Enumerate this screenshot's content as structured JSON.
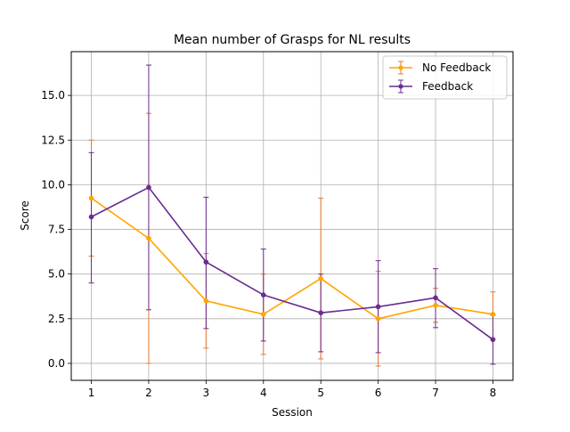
{
  "chart_data": {
    "type": "line",
    "title": "Mean number of Grasps for NL results",
    "xlabel": "Session",
    "ylabel": "Score",
    "x": [
      1,
      2,
      3,
      4,
      5,
      6,
      7,
      8
    ],
    "xlim": [
      0.65,
      8.35
    ],
    "ylim": [
      -0.95,
      17.45
    ],
    "xticks": [
      1,
      2,
      3,
      4,
      5,
      6,
      7,
      8
    ],
    "yticks": [
      0.0,
      2.5,
      5.0,
      7.5,
      10.0,
      12.5,
      15.0
    ],
    "ytick_labels": [
      "0.0",
      "2.5",
      "5.0",
      "7.5",
      "10.0",
      "12.5",
      "15.0"
    ],
    "grid": true,
    "legend_position": "top-right",
    "series": [
      {
        "name": "No Feedback",
        "color": "#FFA500",
        "error_color": "#E8792B",
        "values": [
          9.25,
          7.0,
          3.5,
          2.75,
          4.75,
          2.5,
          3.25,
          2.75
        ],
        "yerr_low": [
          6.0,
          0.0,
          0.85,
          0.5,
          0.25,
          -0.15,
          2.3,
          1.4
        ],
        "yerr_high": [
          12.5,
          14.0,
          6.15,
          5.0,
          9.25,
          5.15,
          4.2,
          4.0
        ]
      },
      {
        "name": "Feedback",
        "color": "#6A2C91",
        "error_color": "#6A2C91",
        "values": [
          8.2,
          9.85,
          5.67,
          3.83,
          2.83,
          3.17,
          3.67,
          1.33
        ],
        "yerr_low": [
          4.5,
          3.0,
          1.95,
          1.25,
          0.65,
          0.6,
          2.0,
          -0.05
        ],
        "yerr_high": [
          11.8,
          16.7,
          9.3,
          6.4,
          5.0,
          5.75,
          5.3,
          2.7
        ]
      }
    ]
  }
}
